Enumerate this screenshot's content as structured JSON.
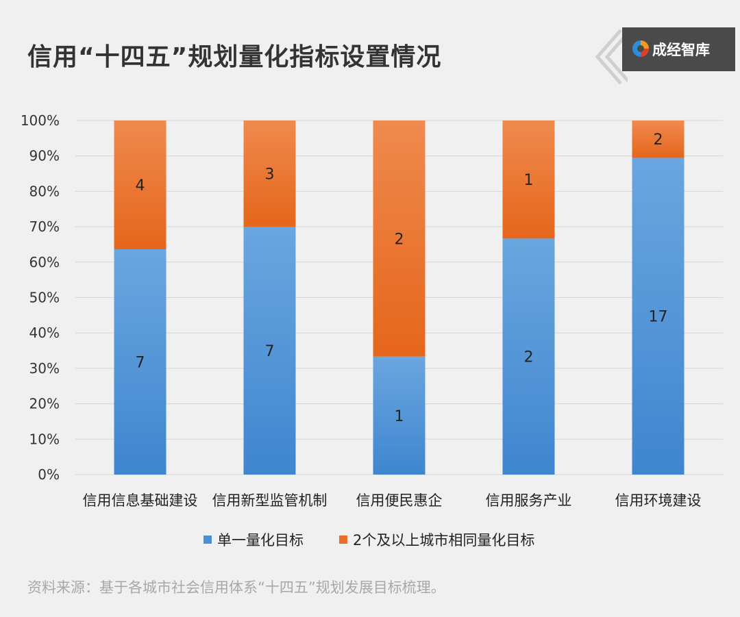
{
  "title": "信用“十四五”规划量化指标设置情况",
  "logo": {
    "text": "成经智库",
    "icon": "swirl-logo-icon"
  },
  "source": "资料来源：基于各城市社会信用体系“十四五”规划发展目标梳理。",
  "colors": {
    "blue": "#4a90d6",
    "orange": "#e86f25",
    "grid": "#d6d6d6"
  },
  "chart_data": {
    "type": "bar",
    "stacked": true,
    "percent": true,
    "categories": [
      "信用信息基础建设",
      "信用新型监管机制",
      "信用便民惠企",
      "信用服务产业",
      "信用环境建设"
    ],
    "series": [
      {
        "name": "单一量化目标",
        "values": [
          7,
          7,
          1,
          2,
          17
        ],
        "color": "#4a90d6"
      },
      {
        "name": "2个及以上城市相同量化目标",
        "values": [
          4,
          3,
          2,
          1,
          2
        ],
        "color": "#e86f25"
      }
    ],
    "yticks": [
      "0%",
      "10%",
      "20%",
      "30%",
      "40%",
      "50%",
      "60%",
      "70%",
      "80%",
      "90%",
      "100%"
    ],
    "ylim": [
      0,
      100
    ],
    "grid": true,
    "legend_position": "bottom"
  }
}
